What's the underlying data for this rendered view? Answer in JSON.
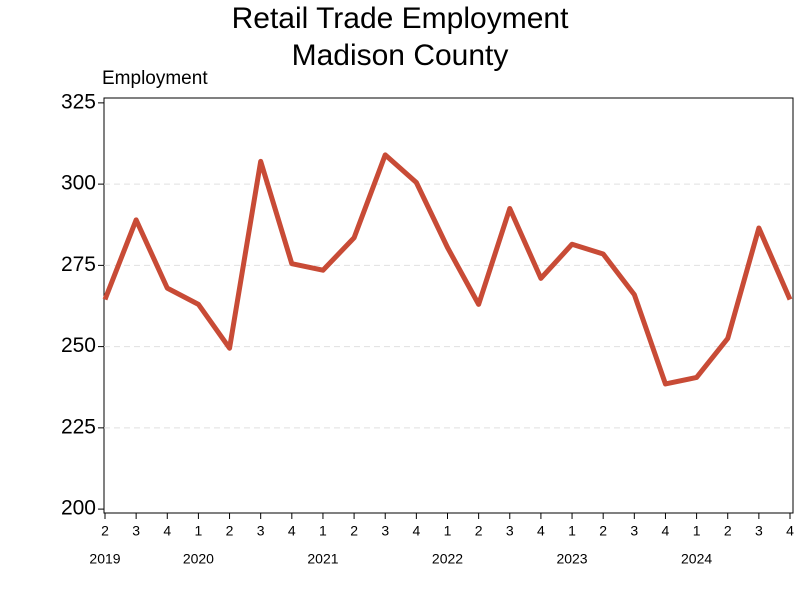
{
  "chart_data": {
    "type": "line",
    "title": [
      "Retail Trade Employment",
      "Madison County"
    ],
    "y_label": "Employment",
    "categories": [
      "2",
      "3",
      "4",
      "1",
      "2",
      "3",
      "4",
      "1",
      "2",
      "3",
      "4",
      "1",
      "2",
      "3",
      "4",
      "1",
      "2",
      "3",
      "4",
      "1",
      "2",
      "3",
      "4"
    ],
    "groups": [
      {
        "label": "2019",
        "start": 0
      },
      {
        "label": "2020",
        "start": 3
      },
      {
        "label": "2021",
        "start": 7
      },
      {
        "label": "2022",
        "start": 11
      },
      {
        "label": "2023",
        "start": 15
      },
      {
        "label": "2024",
        "start": 19
      }
    ],
    "series": [
      {
        "name": "Employment",
        "color": "#c84b36",
        "values": [
          264.5,
          289,
          268,
          263,
          249.5,
          307,
          275.5,
          273.5,
          283.5,
          309,
          300.5,
          280.5,
          263,
          292.5,
          271,
          281.5,
          278.5,
          266,
          238.5,
          240.5,
          252.5,
          286.5,
          264.5
        ]
      }
    ],
    "ylim": [
      198.8,
      326.5
    ],
    "yticks": [
      200,
      225,
      250,
      275,
      300,
      325
    ],
    "grid": true
  }
}
